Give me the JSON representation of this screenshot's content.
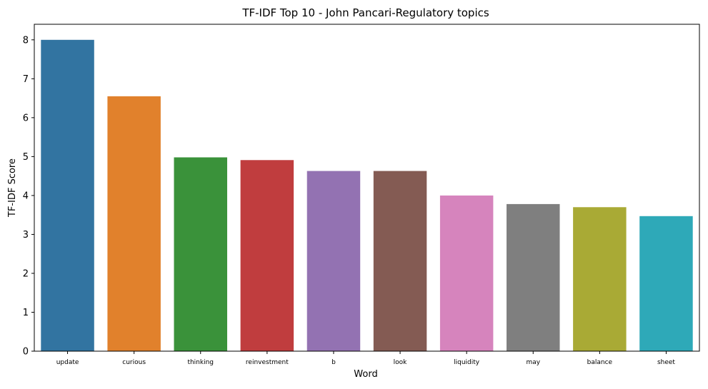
{
  "chart_data": {
    "type": "bar",
    "title": "TF-IDF Top 10 - John Pancari-Regulatory topics",
    "xlabel": "Word",
    "ylabel": "TF-IDF Score",
    "ylim": [
      0,
      8.4
    ],
    "yticks": [
      0,
      1,
      2,
      3,
      4,
      5,
      6,
      7,
      8
    ],
    "grid": false,
    "legend": "none",
    "categories": [
      "update",
      "curious",
      "thinking",
      "reinvestment",
      "b",
      "look",
      "liquidity",
      "may",
      "balance",
      "sheet"
    ],
    "values": [
      8.0,
      6.55,
      4.98,
      4.91,
      4.63,
      4.63,
      4.0,
      3.78,
      3.7,
      3.47
    ],
    "colors": [
      "#3274a1",
      "#e1812c",
      "#3a923a",
      "#c03d3e",
      "#9372b2",
      "#845b53",
      "#d684bd",
      "#7f7f7f",
      "#a9aa35",
      "#2ea9b8"
    ]
  }
}
